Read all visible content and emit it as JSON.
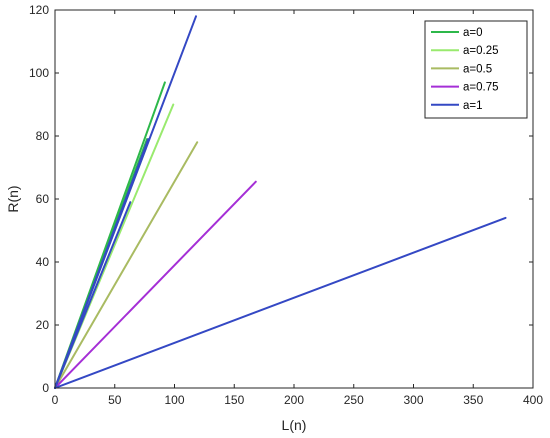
{
  "chart_data": {
    "type": "line",
    "title": "",
    "xlabel": "L(n)",
    "ylabel": "R(n)",
    "xlim": [
      0,
      400
    ],
    "ylim": [
      0,
      120
    ],
    "xticks": [
      0,
      50,
      100,
      150,
      200,
      250,
      300,
      350,
      400
    ],
    "yticks": [
      0,
      20,
      40,
      60,
      80,
      100,
      120
    ],
    "grid": false,
    "legend_position": "top-right",
    "series": [
      {
        "name": "a=0",
        "color": "#2db84a",
        "segments": [
          [
            [
              0,
              0
            ],
            [
              92,
              97
            ]
          ],
          [
            [
              0,
              0
            ],
            [
              77,
              79
            ]
          ]
        ]
      },
      {
        "name": "a=0.25",
        "color": "#99ea6e",
        "segments": [
          [
            [
              0,
              0
            ],
            [
              99,
              90
            ]
          ],
          [
            [
              0,
              0
            ],
            [
              76,
              76
            ]
          ]
        ]
      },
      {
        "name": "a=0.5",
        "color": "#a9bb62",
        "segments": [
          [
            [
              0,
              0
            ],
            [
              119,
              78
            ]
          ]
        ]
      },
      {
        "name": "a=0.75",
        "color": "#a52fd6",
        "segments": [
          [
            [
              0,
              0
            ],
            [
              168,
              65.5
            ]
          ]
        ]
      },
      {
        "name": "a=1",
        "color": "#3448c4",
        "segments": [
          [
            [
              0,
              0
            ],
            [
              118,
              118
            ]
          ],
          [
            [
              0,
              0
            ],
            [
              78,
              79
            ]
          ],
          [
            [
              0,
              0
            ],
            [
              63,
              59
            ]
          ],
          [
            [
              0,
              0
            ],
            [
              377,
              54
            ]
          ]
        ]
      }
    ]
  }
}
